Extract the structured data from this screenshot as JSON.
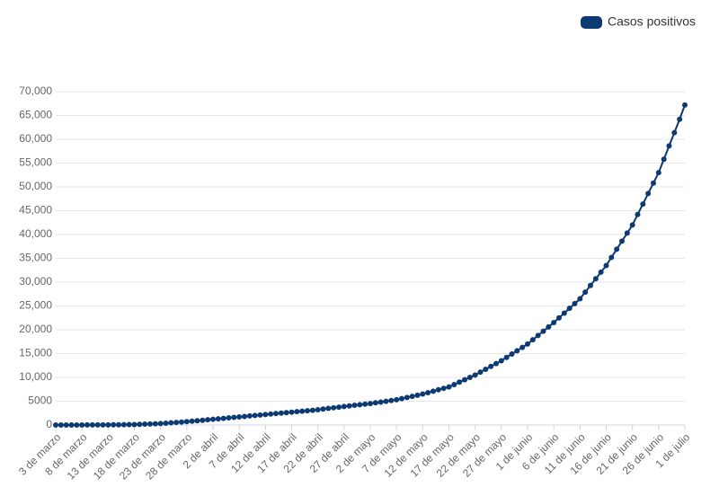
{
  "chart_data": {
    "type": "line",
    "categories": [
      "3 de marzo",
      null,
      null,
      null,
      null,
      "8 de marzo",
      null,
      null,
      null,
      null,
      "13 de marzo",
      null,
      null,
      null,
      null,
      "18 de marzo",
      null,
      null,
      null,
      null,
      "23 de marzo",
      null,
      null,
      null,
      null,
      "28 de marzo",
      null,
      null,
      null,
      null,
      "2 de abril",
      null,
      null,
      null,
      null,
      "7 de abril",
      null,
      null,
      null,
      null,
      "12 de abril",
      null,
      null,
      null,
      null,
      "17 de abril",
      null,
      null,
      null,
      null,
      "22 de abril",
      null,
      null,
      null,
      null,
      "27 de abril",
      null,
      null,
      null,
      null,
      "2 de mayo",
      null,
      null,
      null,
      null,
      "7 de mayo",
      null,
      null,
      null,
      null,
      "12 de mayo",
      null,
      null,
      null,
      null,
      "17 de mayo",
      null,
      null,
      null,
      null,
      "22 de mayo",
      null,
      null,
      null,
      null,
      "27 de mayo",
      null,
      null,
      null,
      null,
      "1 de junio",
      null,
      null,
      null,
      null,
      "6 de junio",
      null,
      null,
      null,
      null,
      "11 de junio",
      null,
      null,
      null,
      null,
      "16 de junio",
      null,
      null,
      null,
      null,
      "21 de junio",
      null,
      null,
      null,
      null,
      "26 de junio",
      null,
      null,
      null,
      null,
      "1 de julio"
    ],
    "series": [
      {
        "name": "Casos positivos",
        "color": "#0d3a73",
        "values": [
          5,
          6,
          7,
          8,
          9,
          10,
          14,
          18,
          22,
          26,
          30,
          44,
          58,
          72,
          86,
          100,
          140,
          180,
          220,
          260,
          300,
          380,
          460,
          540,
          620,
          700,
          800,
          900,
          1000,
          1100,
          1200,
          1300,
          1400,
          1500,
          1600,
          1700,
          1800,
          1900,
          2000,
          2100,
          2200,
          2300,
          2400,
          2500,
          2600,
          2700,
          2800,
          2900,
          3000,
          3100,
          3200,
          3340,
          3480,
          3620,
          3760,
          3900,
          4020,
          4140,
          4260,
          4380,
          4500,
          4660,
          4820,
          4980,
          5140,
          5300,
          5540,
          5780,
          6020,
          6260,
          6500,
          6800,
          7100,
          7400,
          7700,
          8000,
          8500,
          9000,
          9500,
          10000,
          10500,
          11100,
          11700,
          12300,
          12900,
          13500,
          14200,
          14900,
          15600,
          16300,
          17000,
          17900,
          18800,
          19700,
          20600,
          21500,
          22500,
          23500,
          24500,
          25500,
          26500,
          27900,
          29300,
          30700,
          32100,
          33500,
          35200,
          36900,
          38600,
          40300,
          42000,
          44200,
          46400,
          48600,
          50800,
          53000,
          55800,
          58600,
          61400,
          64200,
          67200
        ]
      }
    ],
    "ylim": [
      0,
      70000
    ],
    "yticks": [
      0,
      5000,
      {
        "value": 10000,
        "label": "10,000"
      },
      {
        "value": 15000,
        "label": "15,000"
      },
      {
        "value": 20000,
        "label": "20,000"
      },
      {
        "value": 25000,
        "label": "25,000"
      },
      {
        "value": 30000,
        "label": "30,000"
      },
      {
        "value": 35000,
        "label": "35,000"
      },
      {
        "value": 40000,
        "label": "40,000"
      },
      {
        "value": 45000,
        "label": "45,000"
      },
      {
        "value": 50000,
        "label": "50,000"
      },
      {
        "value": 55000,
        "label": "55,000"
      },
      {
        "value": 60000,
        "label": "60,000"
      },
      {
        "value": 65000,
        "label": "65,000"
      },
      {
        "value": 70000,
        "label": "70,000"
      }
    ],
    "grid": true,
    "legend": "top-right"
  }
}
